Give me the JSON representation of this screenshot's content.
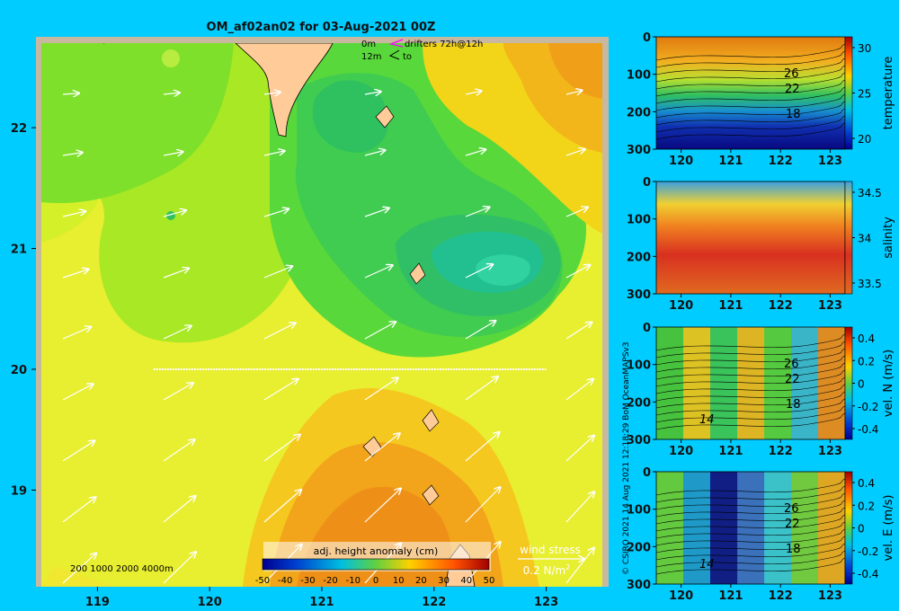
{
  "title": "OM_af02an02 for 03-Aug-2021 00Z",
  "colors": {
    "background": "#00ccff",
    "land": "#ffcc99",
    "frame": "#c9b8a0"
  },
  "legend": {
    "depth_0": "0m",
    "depth_12": "12m",
    "drifters": "drifters 72h@12h",
    "to": "to",
    "bathymetry": "200  1000  2000  4000m",
    "wind_label": "wind stress",
    "wind_value": "0.2 N/m",
    "wind_exp": "2"
  },
  "colorbar": {
    "label": "adj. height anomaly (cm)",
    "ticks": [
      "-50",
      "-40",
      "-30",
      "-20",
      "-10",
      "0",
      "10",
      "20",
      "30",
      "40",
      "50"
    ]
  },
  "side_text": "© CSIRO 2021   14 Aug 2021 12:18:29 BoM OceanMAPSv3",
  "chart_data": [
    {
      "type": "heatmap",
      "title": "OM_af02an02 for 03-Aug-2021 00Z",
      "xticks": [
        "119",
        "120",
        "121",
        "122",
        "123"
      ],
      "yticks": [
        "19",
        "20",
        "21",
        "22"
      ],
      "xlim": [
        118.5,
        123.5
      ],
      "ylim": [
        18.2,
        22.7
      ],
      "colorbar_label": "adj. height anomaly (cm)",
      "colorbar_range": [
        -50,
        50
      ],
      "section_line": {
        "x": [
          119.5,
          123.0
        ],
        "y": [
          20.0,
          20.0
        ]
      }
    },
    {
      "type": "heatmap",
      "xticks": [
        "120",
        "121",
        "122",
        "123"
      ],
      "yticks": [
        "0",
        "100",
        "200",
        "300"
      ],
      "cbar_label": "temperature",
      "cbar_ticks": [
        "30",
        "25",
        "20"
      ],
      "contour_labels": [
        "26",
        "22",
        "18"
      ]
    },
    {
      "type": "heatmap",
      "xticks": [
        "120",
        "121",
        "122",
        "123"
      ],
      "yticks": [
        "0",
        "100",
        "200",
        "300"
      ],
      "cbar_label": "salinity",
      "cbar_ticks": [
        "34.5",
        "34",
        "33.5"
      ]
    },
    {
      "type": "heatmap",
      "xticks": [
        "120",
        "121",
        "122",
        "123"
      ],
      "yticks": [
        "0",
        "100",
        "200",
        "300"
      ],
      "cbar_label": "vel. N (m/s)",
      "cbar_ticks": [
        "0.4",
        "0.2",
        "0",
        "-0.2",
        "-0.4"
      ],
      "contour_labels": [
        "26",
        "22",
        "18",
        "14"
      ]
    },
    {
      "type": "heatmap",
      "xticks": [
        "120",
        "121",
        "122",
        "123"
      ],
      "yticks": [
        "0",
        "100",
        "200",
        "300"
      ],
      "cbar_label": "vel. E (m/s)",
      "cbar_ticks": [
        "0.4",
        "0.2",
        "0",
        "-0.2",
        "-0.4"
      ],
      "contour_labels": [
        "26",
        "22",
        "18",
        "14"
      ]
    }
  ]
}
